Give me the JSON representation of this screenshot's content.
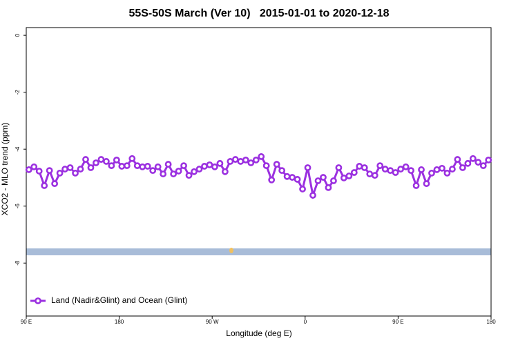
{
  "chart_data": {
    "type": "line",
    "title": "55S-50S March (Ver 10)   2015-01-01 to 2020-12-18",
    "xlabel": "Longitude (deg E)",
    "ylabel": "XCO2 - MLO trend (ppm)",
    "xlim": [
      90,
      540
    ],
    "ylim": [
      -9.86,
      0.27
    ],
    "xticks": [
      {
        "value": 90,
        "label": "90 E"
      },
      180,
      {
        "value": 270,
        "label": "90 W"
      },
      {
        "value": 360,
        "label": "0"
      },
      {
        "value": 450,
        "label": "90 E"
      },
      {
        "value": 540,
        "label": "180"
      }
    ],
    "yticks": [
      0,
      -2,
      -4,
      -6,
      -8
    ],
    "legend": "bottom-left",
    "series": [
      {
        "name": "Land (Nadir&Glint) and Ocean (Glint)",
        "color": "#9b30e0",
        "x": [
          92.5,
          97.5,
          102.5,
          107.5,
          112.5,
          117.5,
          122.5,
          127.5,
          132.5,
          137.5,
          142.5,
          147.5,
          152.5,
          157.5,
          162.5,
          167.5,
          172.5,
          177.5,
          182.5,
          187.5,
          192.5,
          197.5,
          202.5,
          207.5,
          212.5,
          217.5,
          222.5,
          227.5,
          232.5,
          237.5,
          242.5,
          247.5,
          252.5,
          257.5,
          262.5,
          267.5,
          272.5,
          277.5,
          282.5,
          287.5,
          292.5,
          297.5,
          302.5,
          307.5,
          312.5,
          317.5,
          322.5,
          327.5,
          332.5,
          337.5,
          342.5,
          347.5,
          352.5,
          357.5,
          362.5,
          367.5,
          372.5,
          377.5,
          382.5,
          387.5,
          392.5,
          397.5,
          402.5,
          407.5,
          412.5,
          417.5,
          422.5,
          427.5,
          432.5,
          437.5,
          442.5,
          447.5,
          452.5,
          457.5,
          462.5,
          467.5,
          472.5,
          477.5,
          482.5,
          487.5,
          492.5,
          497.5,
          502.5,
          507.5,
          512.5,
          517.5,
          522.5,
          527.5,
          532.5,
          537.5
        ],
        "values": [
          -4.72,
          -4.62,
          -4.77,
          -5.28,
          -4.75,
          -5.21,
          -4.84,
          -4.7,
          -4.65,
          -4.84,
          -4.7,
          -4.36,
          -4.65,
          -4.48,
          -4.36,
          -4.43,
          -4.58,
          -4.38,
          -4.6,
          -4.58,
          -4.33,
          -4.58,
          -4.62,
          -4.6,
          -4.75,
          -4.62,
          -4.87,
          -4.53,
          -4.87,
          -4.77,
          -4.58,
          -4.92,
          -4.79,
          -4.7,
          -4.6,
          -4.55,
          -4.62,
          -4.5,
          -4.79,
          -4.43,
          -4.36,
          -4.43,
          -4.38,
          -4.48,
          -4.38,
          -4.26,
          -4.58,
          -5.08,
          -4.53,
          -4.75,
          -4.96,
          -4.99,
          -5.06,
          -5.4,
          -4.65,
          -5.62,
          -5.11,
          -4.99,
          -5.35,
          -5.11,
          -4.65,
          -5.01,
          -4.94,
          -4.82,
          -4.6,
          -4.65,
          -4.87,
          -4.92,
          -4.58,
          -4.7,
          -4.75,
          -4.82,
          -4.7,
          -4.62,
          -4.75,
          -5.28,
          -4.72,
          -5.21,
          -4.84,
          -4.72,
          -4.67,
          -4.84,
          -4.7,
          -4.36,
          -4.65,
          -4.5,
          -4.33,
          -4.46,
          -4.58,
          -4.38
        ]
      }
    ]
  }
}
